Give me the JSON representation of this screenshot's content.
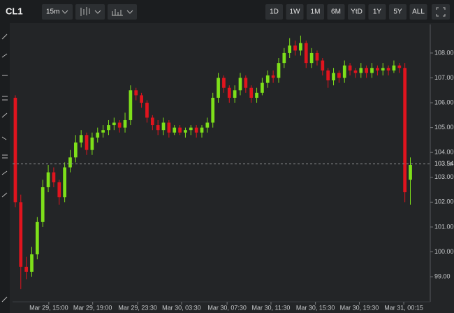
{
  "toolbar": {
    "symbol": "CL1",
    "interval": "15m",
    "ranges": [
      "1D",
      "1W",
      "1M",
      "6M",
      "YtD",
      "1Y",
      "5Y",
      "ALL"
    ]
  },
  "chart_data": {
    "type": "candlestick",
    "open": [
      106.2,
      102.0,
      99.4,
      99.2,
      99.9,
      101.2,
      102.6,
      103.2,
      102.8,
      102.2,
      103.4,
      103.8,
      104.4,
      104.7,
      104.1,
      104.6,
      104.8,
      104.9,
      105.1,
      105.2,
      105.0,
      105.3,
      106.5,
      106.3,
      106.0,
      105.4,
      105.1,
      104.9,
      105.2,
      104.8,
      105.0,
      104.8,
      104.9,
      105.0,
      104.8,
      105.0,
      105.2,
      106.2,
      107.0,
      106.6,
      106.2,
      106.5,
      107.0,
      106.6,
      106.2,
      106.4,
      106.8,
      107.1,
      107.0,
      107.6,
      108.0,
      108.3,
      108.1,
      108.4,
      107.6,
      108.0,
      107.7,
      107.3,
      106.9,
      107.2,
      107.0,
      107.5,
      107.3,
      107.2,
      107.4,
      107.2,
      107.4,
      107.3,
      107.4,
      107.3,
      107.5,
      107.4,
      102.9
    ],
    "high": [
      106.3,
      102.3,
      99.8,
      100.2,
      101.4,
      102.9,
      103.5,
      103.4,
      102.9,
      103.6,
      104.1,
      104.7,
      104.9,
      104.8,
      104.8,
      105.0,
      105.1,
      105.3,
      105.4,
      105.3,
      105.6,
      106.7,
      106.6,
      106.4,
      106.1,
      105.5,
      105.3,
      105.4,
      105.3,
      105.1,
      105.1,
      105.0,
      105.1,
      105.1,
      105.1,
      105.4,
      106.4,
      107.2,
      107.1,
      106.7,
      106.7,
      107.2,
      107.1,
      106.7,
      106.6,
      107.0,
      107.3,
      107.3,
      107.8,
      108.2,
      108.6,
      108.5,
      108.7,
      108.5,
      108.2,
      108.1,
      107.8,
      107.4,
      107.4,
      107.3,
      107.7,
      107.6,
      107.4,
      107.6,
      107.5,
      107.6,
      107.5,
      107.6,
      107.5,
      107.7,
      107.6,
      107.6,
      103.8
    ],
    "low": [
      101.8,
      98.5,
      98.9,
      99.0,
      99.7,
      101.0,
      102.4,
      102.6,
      101.9,
      102.0,
      103.2,
      103.6,
      104.2,
      103.9,
      103.9,
      104.4,
      104.6,
      104.7,
      104.9,
      104.8,
      104.8,
      105.1,
      106.1,
      105.8,
      105.2,
      104.9,
      104.7,
      104.7,
      104.6,
      104.7,
      104.7,
      104.6,
      104.7,
      104.6,
      104.6,
      104.8,
      105.0,
      106.0,
      106.4,
      106.0,
      106.0,
      106.3,
      106.4,
      106.0,
      106.0,
      106.3,
      106.6,
      106.8,
      106.8,
      107.4,
      107.8,
      107.9,
      107.9,
      107.4,
      107.4,
      107.5,
      107.1,
      106.6,
      106.7,
      106.8,
      106.8,
      107.1,
      107.0,
      107.0,
      107.0,
      107.0,
      107.1,
      107.1,
      107.1,
      107.2,
      107.2,
      102.0,
      101.9
    ],
    "close": [
      102.0,
      99.4,
      99.2,
      99.9,
      101.2,
      102.6,
      103.2,
      102.8,
      102.2,
      103.4,
      103.8,
      104.4,
      104.7,
      104.1,
      104.6,
      104.8,
      104.9,
      105.1,
      105.2,
      105.0,
      105.3,
      106.5,
      106.3,
      106.0,
      105.4,
      105.1,
      104.9,
      105.2,
      104.8,
      105.0,
      104.8,
      104.9,
      105.0,
      104.8,
      105.0,
      105.2,
      106.2,
      107.0,
      106.6,
      106.2,
      106.5,
      107.0,
      106.6,
      106.2,
      106.4,
      106.8,
      107.1,
      107.0,
      107.6,
      108.0,
      108.3,
      108.1,
      108.4,
      107.6,
      108.0,
      107.7,
      107.3,
      106.9,
      107.2,
      107.0,
      107.5,
      107.3,
      107.2,
      107.4,
      107.2,
      107.4,
      107.3,
      107.4,
      107.3,
      107.5,
      107.4,
      102.4,
      103.5
    ],
    "up_color": "#7ee01a",
    "down_color": "#e0141e",
    "xlim": [
      0,
      76
    ],
    "xticks": [
      {
        "value": 6.6,
        "label": "Mar 29, 15:00"
      },
      {
        "value": 14.6,
        "label": "Mar 29, 19:00"
      },
      {
        "value": 22.8,
        "label": "Mar 29, 23:30"
      },
      {
        "value": 30.8,
        "label": "Mar 30, 03:30"
      },
      {
        "value": 39.1,
        "label": "Mar 30, 07:30"
      },
      {
        "value": 47.1,
        "label": "Mar 30, 11:30"
      },
      {
        "value": 55.2,
        "label": "Mar 30, 15:30"
      },
      {
        "value": 63.2,
        "label": "Mar 30, 19:30"
      },
      {
        "value": 71.3,
        "label": "Mar 31, 00:15"
      }
    ],
    "ylim": [
      97.99,
      109.15
    ],
    "yticks": [
      {
        "value": 99,
        "label": "99.00"
      },
      {
        "value": 100,
        "label": "100.00"
      },
      {
        "value": 101,
        "label": "101.00"
      },
      {
        "value": 102,
        "label": "102.00"
      },
      {
        "value": 103,
        "label": "103.00"
      },
      {
        "value": 104,
        "label": "104.00"
      },
      {
        "value": 105,
        "label": "105.00"
      },
      {
        "value": 106,
        "label": "106.00"
      },
      {
        "value": 107,
        "label": "107.00"
      },
      {
        "value": 108,
        "label": "108.00"
      }
    ],
    "last_price": 103.54,
    "grid": false
  }
}
